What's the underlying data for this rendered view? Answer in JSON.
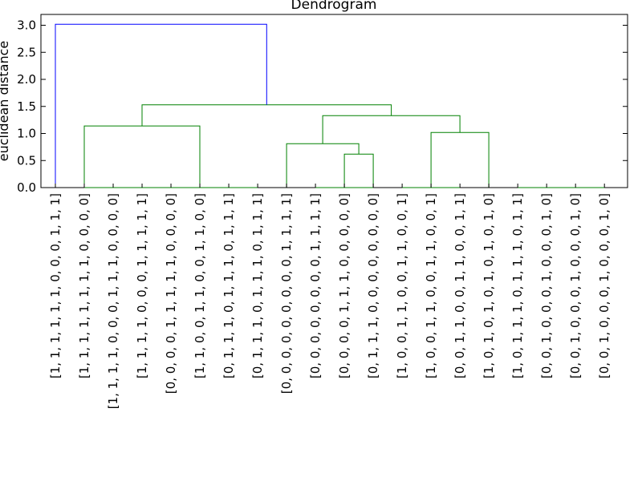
{
  "chart_data": {
    "type": "dendrogram",
    "title": "Dendrogram",
    "xlabel": "",
    "ylabel": "euclidean distance",
    "ylim": [
      0,
      3.2
    ],
    "y_ticks": [
      "0.0",
      "0.5",
      "1.0",
      "1.5",
      "2.0",
      "2.5",
      "3.0"
    ],
    "y_tick_values": [
      0,
      0.5,
      1.0,
      1.5,
      2.0,
      2.5,
      3.0
    ],
    "grid": false,
    "colors": {
      "root": "#0000ff",
      "cluster": "#008000"
    },
    "leaves": [
      "[1, 1, 1, 1, 1, 1, 0, 0, 0, 1, 1, 1]",
      "[1, 1, 1, 1, 1, 1, 1, 1, 0, 0, 0, 0]",
      "[1, 1, 1, 1, 0, 0, 0, 1, 1, 1, 0, 0, 0, 0]",
      "[1, 1, 1, 1, 0, 0, 0, 1, 1, 1, 1, 1]",
      "[0, 0, 0, 0, 1, 1, 1, 1, 1, 0, 0, 0, 0]",
      "[1, 1, 0, 0, 1, 1, 0, 0, 1, 1, 0, 0]",
      "[0, 1, 1, 1, 0, 1, 1, 1, 0, 1, 1, 1]",
      "[0, 1, 1, 1, 0, 1, 1, 1, 0, 1, 1, 1]",
      "[0, 0, 0, 0, 0, 0, 0, 0, 0, 1, 1, 1, 1]",
      "[0, 0, 0, 0, 0, 0, 0, 0, 1, 1, 1, 1]",
      "[0, 0, 0, 0, 1, 1, 1, 0, 0, 0, 0, 0]",
      "[0, 1, 1, 1, 0, 0, 0, 0, 0, 0, 0, 0]",
      "[1, 0, 0, 1, 1, 0, 0, 1, 1, 0, 0, 1]",
      "[1, 0, 0, 1, 1, 0, 0, 1, 1, 0, 0, 1]",
      "[0, 0, 1, 1, 0, 0, 1, 1, 0, 0, 1, 1]",
      "[1, 0, 1, 0, 1, 0, 1, 0, 1, 0, 1, 0]",
      "[1, 0, 1, 1, 1, 0, 1, 1, 1, 0, 1, 1]",
      "[0, 0, 1, 0, 0, 0, 1, 0, 0, 0, 1, 0]",
      "[0, 0, 1, 0, 0, 0, 1, 0, 0, 0, 1, 0]",
      "[0, 0, 1, 0, 0, 0, 1, 0, 0, 0, 1, 0]"
    ],
    "links": [
      {
        "x": [
          6,
          6,
          8,
          8
        ],
        "y": [
          0,
          0,
          0,
          0
        ],
        "color": "cluster"
      },
      {
        "x": [
          2,
          2,
          4,
          4
        ],
        "y": [
          0,
          0,
          0,
          0
        ],
        "color": "cluster"
      },
      {
        "x": [
          3,
          3,
          5,
          5
        ],
        "y": [
          0,
          0,
          0,
          0
        ],
        "color": "cluster"
      },
      {
        "x": [
          4,
          4,
          7,
          7
        ],
        "y": [
          0,
          0,
          0,
          0
        ],
        "color": "cluster"
      },
      {
        "x": [
          13,
          13,
          15,
          15
        ],
        "y": [
          0,
          0,
          0,
          0
        ],
        "color": "cluster"
      },
      {
        "x": [
          17,
          17,
          20,
          20
        ],
        "y": [
          0,
          0,
          0,
          0
        ],
        "color": "cluster"
      },
      {
        "x": [
          10,
          10,
          12,
          12
        ],
        "y": [
          0,
          0,
          0,
          0
        ],
        "color": "cluster"
      },
      {
        "x": [
          2,
          2,
          6,
          6
        ],
        "y": [
          0,
          1.14,
          1.14,
          0
        ],
        "color": "cluster"
      },
      {
        "x": [
          11,
          11,
          12,
          12
        ],
        "y": [
          0,
          0.62,
          0.62,
          0
        ],
        "color": "cluster"
      },
      {
        "x": [
          9,
          9,
          11.5,
          11.5
        ],
        "y": [
          0,
          0.81,
          0.81,
          0.62
        ],
        "color": "cluster"
      },
      {
        "x": [
          14,
          14,
          16,
          16
        ],
        "y": [
          0,
          1.02,
          1.02,
          0
        ],
        "color": "cluster"
      },
      {
        "x": [
          10.25,
          10.25,
          15,
          15
        ],
        "y": [
          0.81,
          1.33,
          1.33,
          1.02
        ],
        "color": "cluster"
      },
      {
        "x": [
          4,
          4,
          12.625,
          12.625
        ],
        "y": [
          1.14,
          1.53,
          1.53,
          1.33
        ],
        "color": "cluster"
      },
      {
        "x": [
          1,
          1,
          8.3125,
          8.3125
        ],
        "y": [
          0,
          3.02,
          3.02,
          1.53
        ],
        "color": "root"
      }
    ]
  }
}
